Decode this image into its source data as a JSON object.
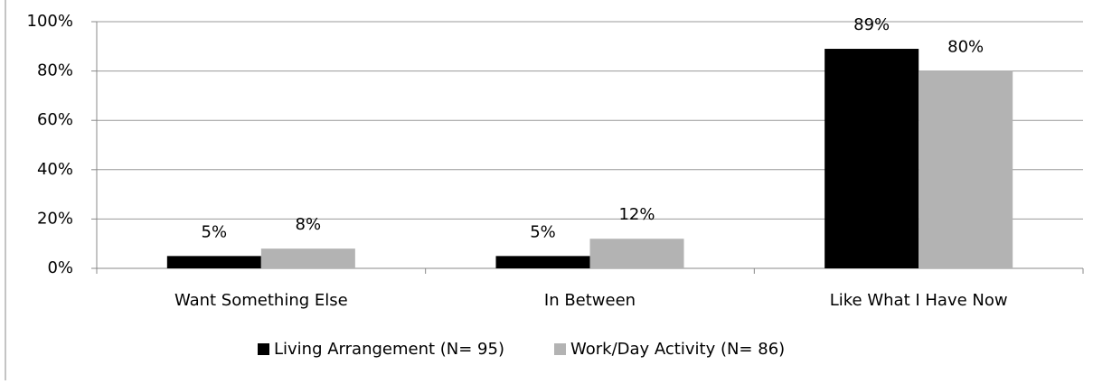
{
  "chart_data": {
    "type": "bar",
    "categories": [
      "Want Something Else",
      "In Between",
      "Like What I Have Now"
    ],
    "series": [
      {
        "name": "Living Arrangement (N= 95)",
        "color": "#000000",
        "values": [
          5,
          5,
          89
        ],
        "value_labels": [
          "5%",
          "5%",
          "89%"
        ]
      },
      {
        "name": "Work/Day Activity (N= 86)",
        "color": "#b3b3b3",
        "values": [
          8,
          12,
          80
        ],
        "value_labels": [
          "8%",
          "12%",
          "80%"
        ]
      }
    ],
    "ylim": [
      0,
      100
    ],
    "yticks": [
      {
        "value": 0,
        "label": "0%"
      },
      {
        "value": 20,
        "label": "20%"
      },
      {
        "value": 40,
        "label": "40%"
      },
      {
        "value": 60,
        "label": "60%"
      },
      {
        "value": 80,
        "label": "80%"
      },
      {
        "value": 100,
        "label": "100%"
      }
    ],
    "grid": true,
    "legend": "bottom"
  }
}
